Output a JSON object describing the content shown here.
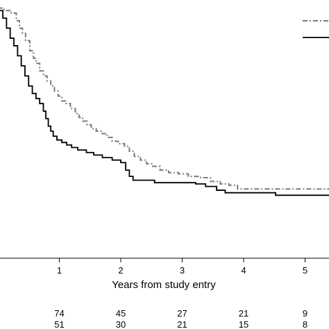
{
  "chart_data": {
    "type": "line",
    "xlabel": "Years from study entry",
    "ylabel": "",
    "xlim": [
      0,
      5.4
    ],
    "ylim": [
      0,
      1
    ],
    "x_ticks": [
      1,
      2,
      3,
      4,
      5
    ],
    "grid": false,
    "legend": "top-right",
    "series": [
      {
        "style": "dash-dot",
        "color": "#7a7a7a",
        "steps": [
          [
            0,
            0.99
          ],
          [
            0.1,
            0.98
          ],
          [
            0.22,
            0.97
          ],
          [
            0.3,
            0.94
          ],
          [
            0.35,
            0.91
          ],
          [
            0.4,
            0.89
          ],
          [
            0.45,
            0.86
          ],
          [
            0.52,
            0.82
          ],
          [
            0.58,
            0.79
          ],
          [
            0.62,
            0.77
          ],
          [
            0.68,
            0.74
          ],
          [
            0.74,
            0.72
          ],
          [
            0.8,
            0.7
          ],
          [
            0.86,
            0.68
          ],
          [
            0.92,
            0.66
          ],
          [
            0.98,
            0.64
          ],
          [
            1.04,
            0.62
          ],
          [
            1.1,
            0.61
          ],
          [
            1.18,
            0.59
          ],
          [
            1.26,
            0.57
          ],
          [
            1.32,
            0.555
          ],
          [
            1.38,
            0.54
          ],
          [
            1.45,
            0.525
          ],
          [
            1.52,
            0.51
          ],
          [
            1.6,
            0.5
          ],
          [
            1.7,
            0.49
          ],
          [
            1.78,
            0.475
          ],
          [
            1.86,
            0.46
          ],
          [
            1.96,
            0.45
          ],
          [
            2.06,
            0.44
          ],
          [
            2.14,
            0.42
          ],
          [
            2.22,
            0.4
          ],
          [
            2.32,
            0.385
          ],
          [
            2.42,
            0.37
          ],
          [
            2.52,
            0.36
          ],
          [
            2.64,
            0.345
          ],
          [
            2.78,
            0.335
          ],
          [
            2.94,
            0.33
          ],
          [
            3.1,
            0.32
          ],
          [
            3.3,
            0.315
          ],
          [
            3.46,
            0.3
          ],
          [
            3.62,
            0.29
          ],
          [
            3.76,
            0.285
          ],
          [
            3.9,
            0.27
          ],
          [
            3.98,
            0.27
          ],
          [
            5.4,
            0.27
          ]
        ]
      },
      {
        "style": "solid",
        "color": "#000000",
        "steps": [
          [
            0,
            0.98
          ],
          [
            0.08,
            0.95
          ],
          [
            0.14,
            0.91
          ],
          [
            0.2,
            0.87
          ],
          [
            0.26,
            0.84
          ],
          [
            0.32,
            0.8
          ],
          [
            0.38,
            0.76
          ],
          [
            0.44,
            0.72
          ],
          [
            0.5,
            0.68
          ],
          [
            0.56,
            0.65
          ],
          [
            0.62,
            0.63
          ],
          [
            0.68,
            0.61
          ],
          [
            0.74,
            0.58
          ],
          [
            0.78,
            0.55
          ],
          [
            0.82,
            0.52
          ],
          [
            0.86,
            0.5
          ],
          [
            0.9,
            0.48
          ],
          [
            0.96,
            0.465
          ],
          [
            1.04,
            0.455
          ],
          [
            1.12,
            0.445
          ],
          [
            1.2,
            0.435
          ],
          [
            1.3,
            0.425
          ],
          [
            1.44,
            0.415
          ],
          [
            1.56,
            0.405
          ],
          [
            1.7,
            0.395
          ],
          [
            1.86,
            0.385
          ],
          [
            2.0,
            0.375
          ],
          [
            2.08,
            0.345
          ],
          [
            2.14,
            0.32
          ],
          [
            2.2,
            0.305
          ],
          [
            2.5,
            0.305
          ],
          [
            2.55,
            0.295
          ],
          [
            3.06,
            0.295
          ],
          [
            3.22,
            0.29
          ],
          [
            3.38,
            0.28
          ],
          [
            3.56,
            0.265
          ],
          [
            3.7,
            0.255
          ],
          [
            4.44,
            0.255
          ],
          [
            4.52,
            0.245
          ],
          [
            5.4,
            0.245
          ]
        ]
      }
    ],
    "risk_table": {
      "times": [
        1,
        2,
        3,
        4,
        5
      ],
      "rows": [
        {
          "values": [
            "74",
            "45",
            "27",
            "21",
            "9"
          ]
        },
        {
          "values": [
            "51",
            "30",
            "21",
            "15",
            "8"
          ]
        }
      ]
    }
  }
}
